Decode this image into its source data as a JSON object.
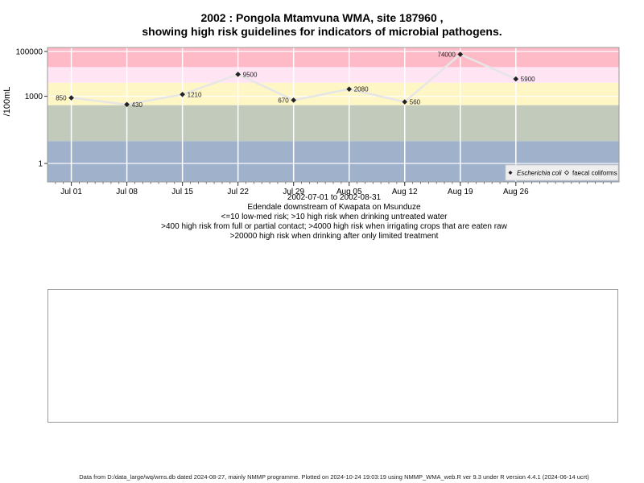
{
  "title_line1": "2002 : Pongola Mtamvuna WMA, site 187960 ,",
  "title_line2": "showing high risk guidelines for indicators of microbial pathogens.",
  "captions": [
    "2002-07-01 to 2002-08-31",
    "Edendale downstream of Kwapata on Msunduze",
    "<=10 low-med risk; >10 high risk when drinking untreated water",
    ">400 high risk from full or partial contact; >4000 high risk when irrigating crops that are eaten raw",
    ">20000 high risk when drinking after only limited treatment"
  ],
  "footer": "Data from D:/data_large/wq/wms.db dated 2024-08-27, mainly NMMP programme. Plotted on 2024-10-24 19:03:19 using NMMP_WMA_web.R ver 9.3 under R version 4.4.1 (2024-06-14 ucrt)",
  "chart_data": {
    "type": "line",
    "ylabel": "/100mL",
    "y_scale": "log",
    "y_ticks": [
      1,
      1000,
      100000
    ],
    "y_tick_labels": [
      "1",
      "1000",
      "100000"
    ],
    "ylim": [
      0.15,
      150000
    ],
    "xlim": [
      "2002-06-28",
      "2002-09-08"
    ],
    "x_ticks": [
      "2002-07-01",
      "2002-07-08",
      "2002-07-15",
      "2002-07-22",
      "2002-07-29",
      "2002-08-05",
      "2002-08-12",
      "2002-08-19",
      "2002-08-26"
    ],
    "x_tick_labels": [
      "Jul 01",
      "Jul 08",
      "Jul 15",
      "Jul 22",
      "Jul 29",
      "Aug 05",
      "Aug 12",
      "Aug 19",
      "Aug 26"
    ],
    "grid": true,
    "risk_bands": [
      {
        "from": 0.15,
        "to": 10,
        "color": "#a0b2cb"
      },
      {
        "from": 10,
        "to": 400,
        "color": "#c2cabc"
      },
      {
        "from": 400,
        "to": 4000,
        "color": "#fff6c6"
      },
      {
        "from": 4000,
        "to": 20000,
        "color": "#ffe4f4"
      },
      {
        "from": 20000,
        "to": 150000,
        "color": "#ffbac7"
      }
    ],
    "series": [
      {
        "name": "Escherichia coli",
        "color": "#222222",
        "line_color": "#e6e6e6",
        "points": [
          {
            "date": "2002-07-01",
            "value": 850,
            "label": "850",
            "label_side": "left"
          },
          {
            "date": "2002-07-08",
            "value": 430,
            "label": "430",
            "label_side": "right"
          },
          {
            "date": "2002-07-15",
            "value": 1210,
            "label": "1210",
            "label_side": "right"
          },
          {
            "date": "2002-07-22",
            "value": 9500,
            "label": "9500",
            "label_side": "right"
          },
          {
            "date": "2002-07-29",
            "value": 670,
            "label": "670",
            "label_side": "left"
          },
          {
            "date": "2002-08-05",
            "value": 2080,
            "label": "2080",
            "label_side": "right"
          },
          {
            "date": "2002-08-12",
            "value": 560,
            "label": "560",
            "label_side": "right"
          },
          {
            "date": "2002-08-19",
            "value": 74000,
            "label": "74000",
            "label_side": "left"
          },
          {
            "date": "2002-08-26",
            "value": 5900,
            "label": "5900",
            "label_side": "right"
          }
        ]
      }
    ],
    "legend": {
      "placement": "bottom-right",
      "entries": [
        "Escherichia coli",
        "faecal coliforms"
      ]
    }
  }
}
